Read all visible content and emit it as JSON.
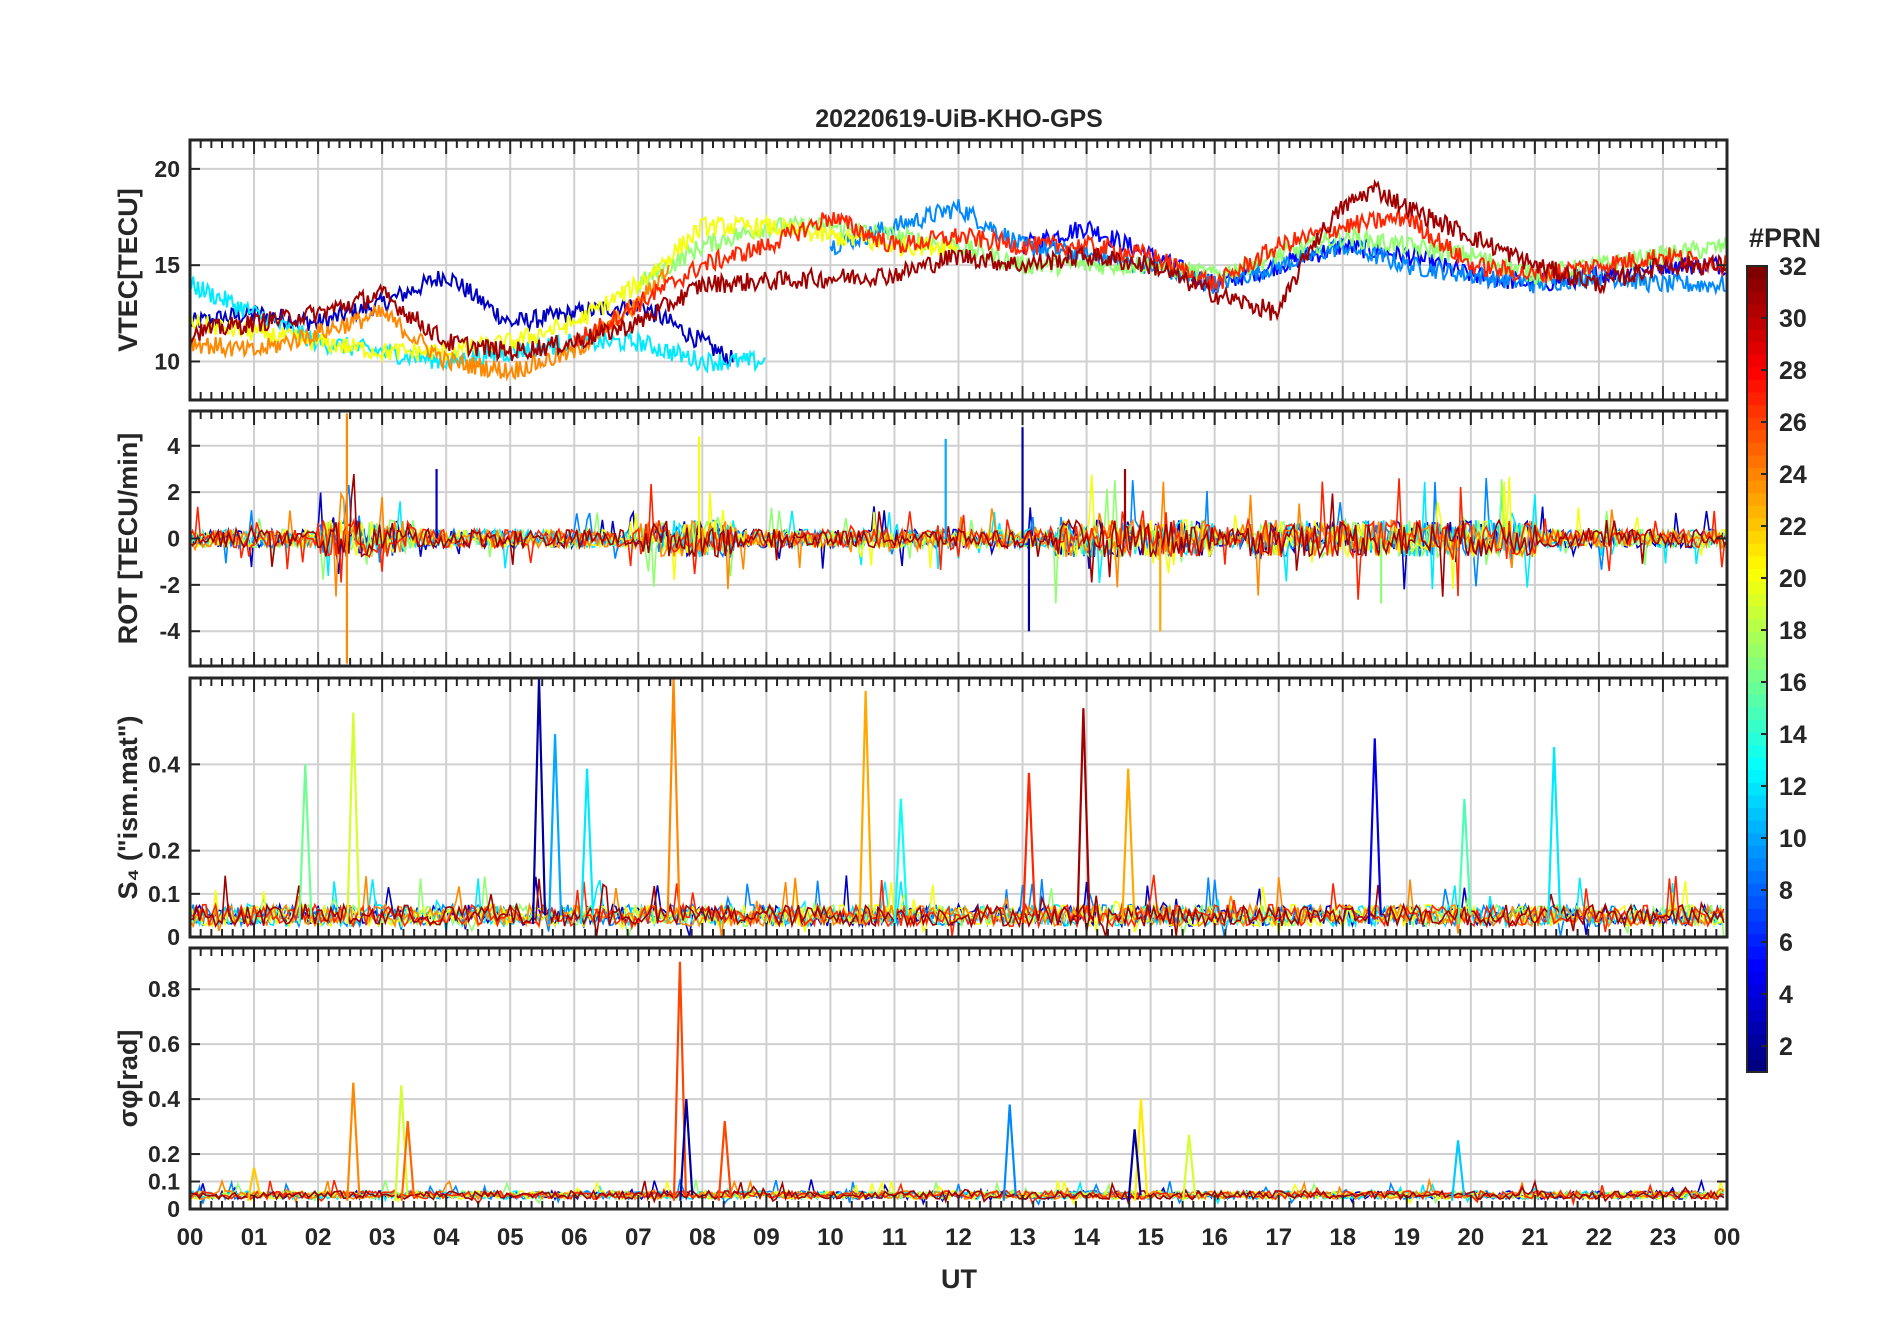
{
  "title": "20220619-UiB-KHO-GPS",
  "xlabel": "UT",
  "x_ticks": [
    "00",
    "01",
    "02",
    "03",
    "04",
    "05",
    "06",
    "07",
    "08",
    "09",
    "10",
    "11",
    "12",
    "13",
    "14",
    "15",
    "16",
    "17",
    "18",
    "19",
    "20",
    "21",
    "22",
    "23",
    "00"
  ],
  "colorbar": {
    "label": "#PRN",
    "range": [
      1,
      32
    ],
    "ticks": [
      2,
      4,
      6,
      8,
      10,
      12,
      14,
      16,
      18,
      20,
      22,
      24,
      26,
      28,
      30,
      32
    ],
    "colormap": "jet",
    "colors": [
      "#00008f",
      "#0000ff",
      "#0080ff",
      "#00ffff",
      "#80ff80",
      "#ffff00",
      "#ff8000",
      "#ff0000",
      "#800000"
    ]
  },
  "chart_data": [
    {
      "type": "line",
      "panel": "VTEC",
      "ylabel": "VTEC[TECU]",
      "ylim": [
        8,
        21.5
      ],
      "yticks": [
        10,
        15,
        20
      ],
      "grid": true,
      "x_range_hours": [
        0,
        24
      ],
      "series": [
        {
          "name": "PRN 3",
          "color_prn": 3,
          "x": [
            0,
            1,
            2,
            3,
            4,
            5,
            6,
            7,
            8,
            8.5
          ],
          "y": [
            12,
            12.5,
            12,
            13,
            14.5,
            12,
            12.5,
            13,
            11,
            10
          ]
        },
        {
          "name": "PRN 5",
          "color_prn": 5,
          "x": [
            13,
            14,
            15,
            16,
            17,
            18,
            19,
            20,
            21,
            22,
            23,
            24
          ],
          "y": [
            16,
            17,
            15.5,
            14,
            15,
            16,
            15.5,
            14.5,
            14,
            14.5,
            15,
            15
          ]
        },
        {
          "name": "PRN 9",
          "color_prn": 9,
          "x": [
            10,
            11,
            12,
            13,
            14,
            15,
            16,
            17,
            18,
            19,
            20,
            21,
            22,
            23,
            24
          ],
          "y": [
            16,
            17,
            18,
            16,
            15.5,
            15,
            14,
            15,
            16,
            15,
            14.5,
            14,
            14.5,
            14,
            14
          ]
        },
        {
          "name": "PRN 12",
          "color_prn": 12,
          "x": [
            0,
            1,
            2,
            3,
            4,
            5,
            6,
            7,
            8,
            9
          ],
          "y": [
            14,
            12.5,
            11,
            10.5,
            10,
            10.5,
            11,
            11,
            10,
            10
          ]
        },
        {
          "name": "PRN 17",
          "color_prn": 17,
          "x": [
            7,
            8,
            9,
            10,
            11,
            12,
            13,
            14,
            15,
            16,
            17,
            18,
            19,
            20,
            21,
            22,
            23,
            24
          ],
          "y": [
            14,
            16,
            17,
            17,
            16.5,
            16,
            15,
            15,
            15,
            14.5,
            15.5,
            16.5,
            16,
            15.5,
            14.5,
            15,
            15.5,
            16
          ]
        },
        {
          "name": "PRN 20",
          "color_prn": 20,
          "x": [
            0,
            1,
            2,
            3,
            4,
            5,
            6,
            7,
            8,
            9,
            10,
            11,
            12
          ],
          "y": [
            12,
            11.5,
            11,
            10.5,
            10.5,
            11,
            12,
            14,
            17,
            17,
            16.5,
            16,
            16
          ]
        },
        {
          "name": "PRN 24",
          "color_prn": 24,
          "x": [
            0,
            1,
            2,
            3,
            4,
            5,
            6,
            7,
            7.5
          ],
          "y": [
            11,
            10.5,
            11.5,
            12.5,
            10,
            9.5,
            10.5,
            13,
            15
          ]
        },
        {
          "name": "PRN 27",
          "color_prn": 27,
          "x": [
            6,
            7,
            8,
            9,
            10,
            11,
            12,
            13,
            14,
            15,
            16,
            17,
            18,
            19,
            20,
            21,
            22,
            23,
            24
          ],
          "y": [
            11,
            13,
            15,
            16,
            17.5,
            16,
            16.5,
            16,
            16,
            15.5,
            14,
            16,
            17,
            17.5,
            15,
            14.5,
            15,
            15.5,
            15
          ]
        },
        {
          "name": "PRN 31",
          "color_prn": 31,
          "x": [
            0,
            1,
            2,
            3,
            4,
            5,
            6,
            7,
            8,
            11,
            12,
            13,
            14,
            15,
            16,
            17,
            17.5,
            18,
            18.5,
            19,
            20,
            21,
            22,
            23,
            24
          ],
          "y": [
            11.5,
            12,
            12.5,
            13.5,
            11,
            10.5,
            11,
            12,
            14,
            14.5,
            15.5,
            15,
            15.5,
            15,
            13.5,
            12.5,
            16,
            18,
            19,
            18,
            16.5,
            15,
            14,
            15,
            15
          ]
        }
      ]
    },
    {
      "type": "line",
      "panel": "ROT",
      "ylabel": "ROT [TECU/min]",
      "ylim": [
        -5.5,
        5.5
      ],
      "yticks": [
        -4,
        -2,
        0,
        2,
        4
      ],
      "grid": true,
      "spikes": [
        {
          "x": 2.45,
          "y": 5.4,
          "color_prn": 24
        },
        {
          "x": 2.45,
          "y": -5.4,
          "color_prn": 24
        },
        {
          "x": 7.95,
          "y": 4.4,
          "color_prn": 20
        },
        {
          "x": 11.8,
          "y": 4.3,
          "color_prn": 10
        },
        {
          "x": 13.0,
          "y": 4.8,
          "color_prn": 2
        },
        {
          "x": 13.1,
          "y": -4.0,
          "color_prn": 2
        },
        {
          "x": 15.15,
          "y": -4.0,
          "color_prn": 23
        },
        {
          "x": 14.6,
          "y": 3.0,
          "color_prn": 31
        },
        {
          "x": 3.85,
          "y": 3.0,
          "color_prn": 3
        },
        {
          "x": 18.6,
          "y": -2.8,
          "color_prn": 17
        }
      ]
    },
    {
      "type": "line",
      "panel": "S4",
      "ylabel": "S₄ (\"ism.mat\")",
      "ylim": [
        0,
        0.6
      ],
      "yticks": [
        0,
        0.1,
        0.2,
        0.4
      ],
      "grid": true,
      "peaks": [
        {
          "x": 5.45,
          "y": 0.6,
          "color_prn": 2
        },
        {
          "x": 7.55,
          "y": 0.6,
          "color_prn": 24
        },
        {
          "x": 10.55,
          "y": 0.57,
          "color_prn": 23
        },
        {
          "x": 13.95,
          "y": 0.53,
          "color_prn": 31
        },
        {
          "x": 2.55,
          "y": 0.52,
          "color_prn": 19
        },
        {
          "x": 5.7,
          "y": 0.47,
          "color_prn": 10
        },
        {
          "x": 18.5,
          "y": 0.46,
          "color_prn": 4
        },
        {
          "x": 21.3,
          "y": 0.44,
          "color_prn": 12
        },
        {
          "x": 1.8,
          "y": 0.4,
          "color_prn": 16
        },
        {
          "x": 6.2,
          "y": 0.39,
          "color_prn": 12
        },
        {
          "x": 14.65,
          "y": 0.39,
          "color_prn": 23
        },
        {
          "x": 13.1,
          "y": 0.38,
          "color_prn": 27
        },
        {
          "x": 11.1,
          "y": 0.32,
          "color_prn": 13
        },
        {
          "x": 19.9,
          "y": 0.32,
          "color_prn": 15
        }
      ]
    },
    {
      "type": "line",
      "panel": "sigma_phi",
      "ylabel": "σφ[rad]",
      "ylim": [
        0,
        0.95
      ],
      "yticks": [
        0,
        0.1,
        0.2,
        0.4,
        0.6,
        0.8
      ],
      "grid": true,
      "peaks": [
        {
          "x": 7.65,
          "y": 0.9,
          "color_prn": 26
        },
        {
          "x": 2.55,
          "y": 0.46,
          "color_prn": 24
        },
        {
          "x": 3.3,
          "y": 0.45,
          "color_prn": 19
        },
        {
          "x": 7.75,
          "y": 0.4,
          "color_prn": 2
        },
        {
          "x": 14.85,
          "y": 0.4,
          "color_prn": 21
        },
        {
          "x": 12.8,
          "y": 0.38,
          "color_prn": 9
        },
        {
          "x": 8.35,
          "y": 0.32,
          "color_prn": 26
        },
        {
          "x": 3.4,
          "y": 0.32,
          "color_prn": 25
        },
        {
          "x": 15.6,
          "y": 0.27,
          "color_prn": 19
        },
        {
          "x": 14.75,
          "y": 0.29,
          "color_prn": 2
        },
        {
          "x": 19.8,
          "y": 0.25,
          "color_prn": 11
        },
        {
          "x": 1.0,
          "y": 0.15,
          "color_prn": 22
        }
      ]
    }
  ]
}
